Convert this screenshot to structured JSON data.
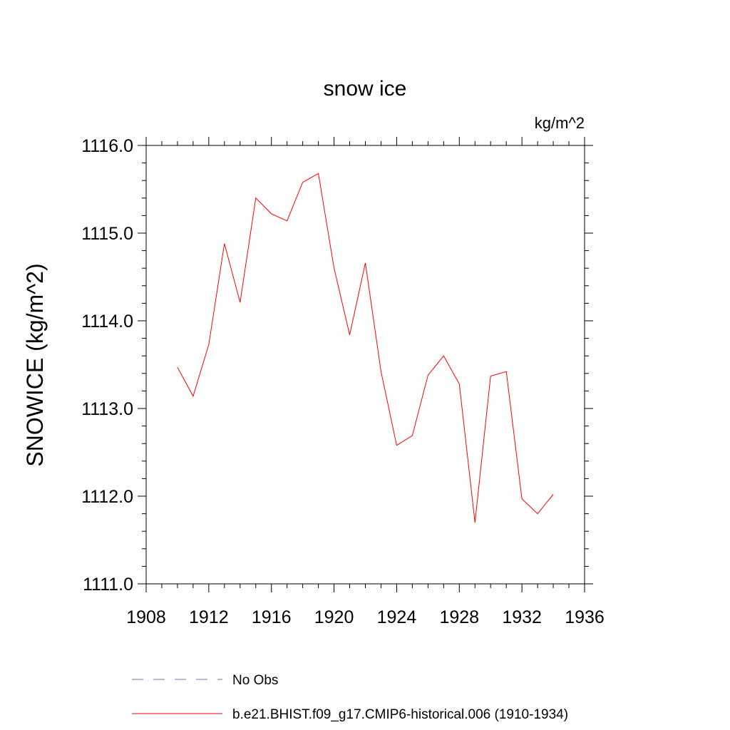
{
  "chart_data": {
    "type": "line",
    "title": "snow ice",
    "units": "kg/m^2",
    "ylabel": "SNOWICE  (kg/m^2)",
    "xlabel": "",
    "xlim": [
      1908,
      1936
    ],
    "ylim": [
      1111.0,
      1116.0
    ],
    "x_ticks": [
      "1908",
      "1912",
      "1916",
      "1920",
      "1924",
      "1928",
      "1932",
      "1936"
    ],
    "y_ticks": [
      "1111.0",
      "1112.0",
      "1113.0",
      "1114.0",
      "1115.0",
      "1116.0"
    ],
    "grid": false,
    "legend_position": "bottom",
    "series": [
      {
        "name": "b.e21.BHIST.f09_g17.CMIP6-historical.006 (1910-1934)",
        "color": "#ff0000",
        "x": [
          1910,
          1911,
          1912,
          1913,
          1914,
          1915,
          1916,
          1917,
          1918,
          1919,
          1920,
          1921,
          1922,
          1923,
          1924,
          1925,
          1926,
          1927,
          1928,
          1929,
          1930,
          1931,
          1932,
          1933,
          1934
        ],
        "y": [
          1113.47,
          1113.14,
          1113.73,
          1114.88,
          1114.21,
          1115.4,
          1115.22,
          1115.14,
          1115.58,
          1115.68,
          1114.6,
          1113.84,
          1114.66,
          1113.42,
          1112.58,
          1112.69,
          1113.38,
          1113.6,
          1113.28,
          1111.7,
          1113.37,
          1113.42,
          1111.97,
          1111.8,
          1112.02
        ]
      }
    ],
    "legend": [
      {
        "label": "No Obs",
        "color": "#6f6fc0",
        "style": "dashed"
      },
      {
        "label": "b.e21.BHIST.f09_g17.CMIP6-historical.006 (1910-1934)",
        "color": "#ff0000",
        "style": "solid"
      }
    ]
  }
}
